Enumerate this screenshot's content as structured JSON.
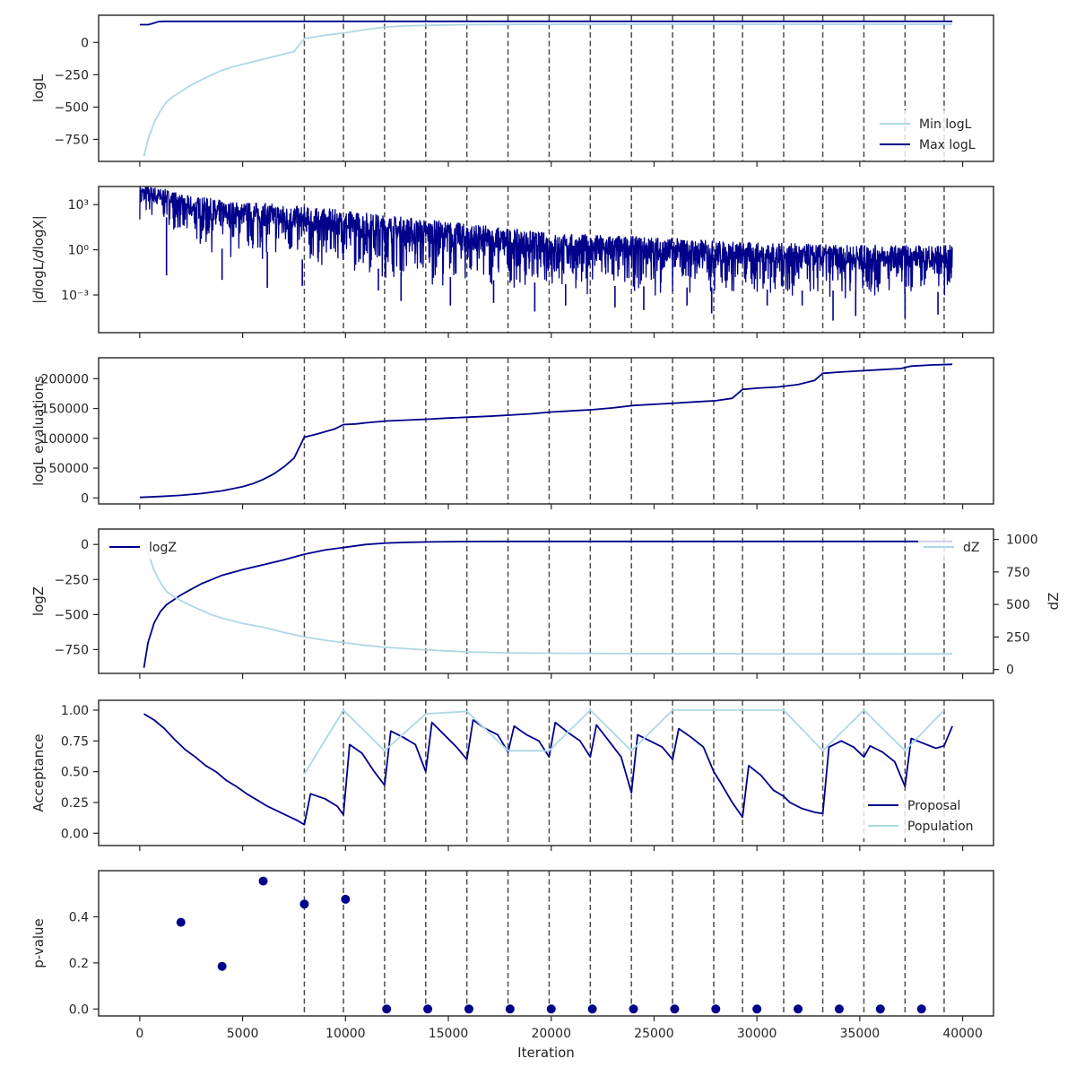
{
  "colors": {
    "navy": "#00008b",
    "light_blue": "#add8e6",
    "frame": "#262626",
    "vline": "#4d4d4d",
    "legend_bg": "#ffffff"
  },
  "shared_x": {
    "label": "Iteration",
    "lim": [
      -2000,
      41500
    ],
    "ticks": [
      0,
      5000,
      10000,
      15000,
      20000,
      25000,
      30000,
      35000,
      40000
    ],
    "tick_labels": [
      "0",
      "5000",
      "10000",
      "15000",
      "20000",
      "25000",
      "30000",
      "35000",
      "40000"
    ]
  },
  "vertical_lines": [
    8000,
    9900,
    11900,
    13900,
    15900,
    17900,
    19900,
    21900,
    23900,
    25900,
    27900,
    29300,
    31300,
    33200,
    35200,
    37200,
    39100
  ],
  "chart_data": [
    {
      "id": "loglikelihood",
      "type": "line",
      "ylabel": "logL",
      "ylim": [
        -920,
        210
      ],
      "yticks": [
        -750,
        -500,
        -250,
        0
      ],
      "ytick_labels": [
        "−750",
        "−500",
        "−250",
        "0"
      ],
      "legend": {
        "position": "lower-right",
        "entries": [
          "Min logL",
          "Max logL"
        ]
      },
      "series": [
        {
          "name": "Min logL",
          "color": "light_blue",
          "x": [
            200,
            400,
            700,
            1000,
            1300,
            1600,
            2000,
            2500,
            3000,
            3500,
            4000,
            4500,
            5000,
            5500,
            6000,
            6500,
            7000,
            7500,
            8000,
            9000,
            10000,
            11000,
            12000,
            13000,
            14000,
            15000,
            16000,
            18000,
            20000,
            25000,
            30000,
            35000,
            39500
          ],
          "y": [
            -880,
            -750,
            -620,
            -530,
            -460,
            -420,
            -380,
            -330,
            -290,
            -250,
            -215,
            -190,
            -170,
            -150,
            -130,
            -110,
            -90,
            -70,
            30,
            55,
            75,
            100,
            120,
            128,
            132,
            135,
            137,
            139,
            140,
            141,
            141,
            141,
            141
          ]
        },
        {
          "name": "Max logL",
          "color": "navy",
          "x": [
            0,
            400,
            600,
            900,
            1200,
            39500
          ],
          "y": [
            137,
            137,
            145,
            160,
            163,
            163
          ]
        }
      ]
    },
    {
      "id": "gradients",
      "type": "line",
      "ylabel": "|dlogL/dlogX|",
      "yscale": "log",
      "ylim_log10": [
        -5.5,
        4.2
      ],
      "yticks_log10": [
        -3,
        0,
        3
      ],
      "ytick_labels": [
        "10⁻³",
        "10⁰",
        "10³"
      ],
      "series": [
        {
          "name": "",
          "color": "navy",
          "x": [
            0,
            2000,
            4000,
            6000,
            8000,
            10000,
            12000,
            14000,
            16000,
            18000,
            20000,
            22000,
            24000,
            26000,
            28000,
            30000,
            32000,
            34000,
            36000,
            38000,
            39500
          ],
          "upper": [
            20000,
            4500,
            1800,
            1300,
            700,
            400,
            200,
            100,
            50,
            25,
            12,
            10,
            8,
            6,
            4,
            3,
            2.5,
            2,
            2,
            2,
            2
          ],
          "lower": [
            100,
            1,
            0.3,
            0.2,
            0.05,
            0.03,
            0.01,
            0.005,
            0.003,
            0.002,
            0.0015,
            0.001,
            0.001,
            0.0008,
            0.0008,
            0.0006,
            0.0005,
            0.0005,
            0.0004,
            0.0004,
            0.0004
          ],
          "spikes": [
            [
              1300,
              0.02
            ],
            [
              4000,
              0.01
            ],
            [
              6200,
              0.003
            ],
            [
              7900,
              0.004
            ],
            [
              11600,
              0.002
            ],
            [
              12700,
              0.0004
            ],
            [
              15100,
              0.0002
            ],
            [
              17200,
              0.0003
            ],
            [
              19200,
              8e-05
            ],
            [
              20700,
              0.0002
            ],
            [
              23100,
              0.00015
            ],
            [
              24500,
              0.0001
            ],
            [
              26600,
              0.0002
            ],
            [
              27800,
              6e-05
            ],
            [
              30500,
              0.0002
            ],
            [
              32200,
              0.0002
            ],
            [
              33700,
              2e-05
            ],
            [
              34800,
              4e-05
            ],
            [
              37200,
              3e-05
            ],
            [
              38800,
              5e-05
            ]
          ]
        }
      ]
    },
    {
      "id": "likelihood_evaluations",
      "type": "line",
      "ylabel": "logL evaluations",
      "ylim": [
        -10000,
        235000
      ],
      "yticks": [
        0,
        50000,
        100000,
        150000,
        200000
      ],
      "ytick_labels": [
        "0",
        "50000",
        "100000",
        "150000",
        "200000"
      ],
      "series": [
        {
          "name": "",
          "color": "navy",
          "x": [
            0,
            1000,
            2000,
            3000,
            4000,
            5000,
            5500,
            6000,
            6500,
            7000,
            7500,
            8000,
            8500,
            9000,
            9500,
            9900,
            10500,
            11000,
            12000,
            13000,
            14000,
            15000,
            16000,
            17000,
            18000,
            19000,
            20000,
            21000,
            22000,
            23000,
            24000,
            25000,
            26000,
            27000,
            28000,
            28800,
            29300,
            30000,
            31000,
            32000,
            32800,
            33200,
            34000,
            35000,
            36000,
            37000,
            37500,
            38500,
            39500
          ],
          "y": [
            1000,
            2500,
            4500,
            7500,
            12000,
            19000,
            24000,
            31000,
            40000,
            52000,
            67000,
            102000,
            106000,
            111000,
            116000,
            123000,
            124000,
            126000,
            129000,
            130500,
            132000,
            134000,
            135500,
            137000,
            139000,
            141000,
            144000,
            146000,
            148000,
            151000,
            155000,
            157000,
            159000,
            161000,
            163000,
            167000,
            182000,
            184000,
            186000,
            190000,
            197000,
            209000,
            211000,
            213000,
            215000,
            217000,
            221000,
            223000,
            224000
          ]
        }
      ]
    },
    {
      "id": "evidence",
      "type": "line",
      "ylabel": "logZ",
      "ylabel_right": "dZ",
      "ylim": [
        -920,
        110
      ],
      "yticks": [
        -750,
        -500,
        -250,
        0
      ],
      "ytick_labels": [
        "−750",
        "−500",
        "−250",
        "0"
      ],
      "ylim_right": [
        -30,
        1080
      ],
      "yticks_right": [
        0,
        250,
        500,
        750,
        1000
      ],
      "ytick_labels_right": [
        "0",
        "250",
        "500",
        "750",
        "1000"
      ],
      "legend_left": {
        "position": "upper-left",
        "entries": [
          "logZ"
        ]
      },
      "legend_right": {
        "position": "upper-right",
        "entries": [
          "dZ"
        ]
      },
      "series": [
        {
          "name": "logZ",
          "color": "navy",
          "axis": "left",
          "x": [
            200,
            400,
            700,
            1000,
            1300,
            1600,
            2000,
            2500,
            3000,
            3500,
            4000,
            4500,
            5000,
            6000,
            7000,
            8000,
            9000,
            10000,
            11000,
            12000,
            13000,
            14000,
            15000,
            16000,
            18000,
            20000,
            25000,
            30000,
            35000,
            39500
          ],
          "y": [
            -880,
            -700,
            -560,
            -480,
            -430,
            -400,
            -360,
            -320,
            -280,
            -250,
            -220,
            -200,
            -180,
            -145,
            -110,
            -70,
            -40,
            -20,
            0,
            10,
            15,
            18,
            20,
            21,
            22,
            22,
            22,
            22,
            22,
            22
          ]
        },
        {
          "name": "dZ",
          "color": "light_blue",
          "axis": "right",
          "x": [
            200,
            400,
            700,
            1000,
            1300,
            1600,
            2000,
            2500,
            3000,
            3500,
            4000,
            5000,
            6000,
            7000,
            8000,
            9000,
            10000,
            11000,
            12000,
            14000,
            16000,
            18000,
            20000,
            25000,
            30000,
            35000,
            39500
          ],
          "y": [
            1020,
            900,
            760,
            670,
            600,
            565,
            530,
            490,
            455,
            420,
            395,
            355,
            325,
            285,
            250,
            225,
            205,
            185,
            170,
            150,
            135,
            128,
            125,
            122,
            121,
            120,
            120
          ]
        }
      ]
    },
    {
      "id": "acceptance",
      "type": "line",
      "ylabel": "Acceptance",
      "ylim": [
        -0.1,
        1.08
      ],
      "yticks": [
        0,
        0.25,
        0.5,
        0.75,
        1.0
      ],
      "ytick_labels": [
        "0.00",
        "0.25",
        "0.50",
        "0.75",
        "1.00"
      ],
      "legend": {
        "position": "lower-right",
        "entries": [
          "Proposal",
          "Population"
        ]
      },
      "series": [
        {
          "name": "Proposal",
          "color": "navy",
          "x": [
            200,
            700,
            1200,
            1700,
            2200,
            2700,
            3200,
            3700,
            4200,
            4700,
            5200,
            5700,
            6200,
            6700,
            7200,
            7700,
            8000,
            8300,
            9000,
            9600,
            9900,
            10200,
            10800,
            11400,
            11900,
            12200,
            12800,
            13400,
            13900,
            14200,
            14800,
            15400,
            15900,
            16200,
            16800,
            17400,
            17900,
            18200,
            18800,
            19400,
            19900,
            20200,
            20800,
            21400,
            21900,
            22200,
            22800,
            23400,
            23900,
            24200,
            24800,
            25400,
            25900,
            26200,
            26800,
            27400,
            27900,
            28200,
            28800,
            29300,
            29600,
            30200,
            30800,
            31300,
            31600,
            32200,
            32800,
            33200,
            33500,
            34100,
            34700,
            35200,
            35500,
            36100,
            36700,
            37200,
            37500,
            38100,
            38700,
            39100,
            39500
          ],
          "y": [
            0.97,
            0.92,
            0.85,
            0.76,
            0.68,
            0.62,
            0.55,
            0.5,
            0.43,
            0.38,
            0.32,
            0.27,
            0.22,
            0.18,
            0.14,
            0.1,
            0.07,
            0.32,
            0.28,
            0.22,
            0.15,
            0.72,
            0.65,
            0.5,
            0.39,
            0.83,
            0.78,
            0.72,
            0.5,
            0.9,
            0.8,
            0.7,
            0.6,
            0.92,
            0.85,
            0.8,
            0.66,
            0.87,
            0.8,
            0.75,
            0.62,
            0.9,
            0.82,
            0.75,
            0.62,
            0.88,
            0.75,
            0.62,
            0.33,
            0.8,
            0.75,
            0.7,
            0.6,
            0.85,
            0.78,
            0.7,
            0.5,
            0.42,
            0.25,
            0.13,
            0.55,
            0.47,
            0.35,
            0.3,
            0.25,
            0.2,
            0.17,
            0.16,
            0.7,
            0.75,
            0.7,
            0.62,
            0.71,
            0.66,
            0.58,
            0.38,
            0.77,
            0.73,
            0.69,
            0.71,
            0.87
          ]
        },
        {
          "name": "Population",
          "color": "light_blue",
          "x": [
            8000,
            9900,
            11900,
            13900,
            15900,
            17900,
            19900,
            21900,
            23900,
            25900,
            27900,
            29300,
            31300,
            33200,
            35200,
            37200,
            39100
          ],
          "y": [
            0.48,
            1.0,
            0.67,
            0.97,
            0.99,
            0.67,
            0.67,
            1.0,
            0.67,
            1.0,
            1.0,
            1.0,
            1.0,
            0.67,
            1.0,
            0.67,
            1.0
          ]
        }
      ]
    },
    {
      "id": "insertion_test",
      "type": "scatter",
      "ylabel": "p-value",
      "xlabel": "Iteration",
      "ylim": [
        -0.03,
        0.6
      ],
      "yticks": [
        0,
        0.2,
        0.4
      ],
      "ytick_labels": [
        "0.0",
        "0.2",
        "0.4"
      ],
      "series": [
        {
          "name": "",
          "color": "navy",
          "x": [
            2000,
            4000,
            6000,
            8000,
            10000,
            12000,
            14000,
            16000,
            18000,
            20000,
            22000,
            24000,
            26000,
            28000,
            30000,
            32000,
            34000,
            36000,
            38000
          ],
          "y": [
            0.376,
            0.185,
            0.555,
            0.455,
            0.476,
            0.0,
            0.0,
            0.0,
            0.0,
            0.0,
            0.0,
            0.0,
            0.0,
            0.0,
            0.0,
            0.0,
            0.0,
            0.0,
            0.0
          ]
        }
      ]
    }
  ]
}
